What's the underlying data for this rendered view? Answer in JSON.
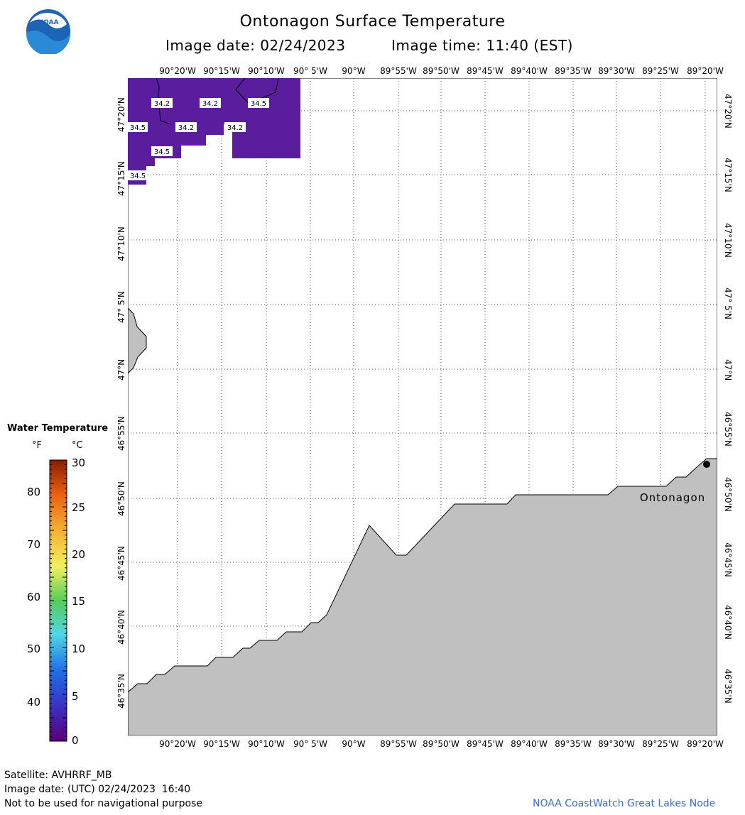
{
  "header": {
    "title": "Ontonagon Surface Temperature",
    "image_date_label": "Image date: 02/24/2023",
    "image_time_label": "Image time: 11:40 (EST)"
  },
  "map": {
    "longitude_labels": [
      "90°20'W",
      "90°15'W",
      "90°10'W",
      "90° 5'W",
      "90°W",
      "89°55'W",
      "89°50'W",
      "89°45'W",
      "89°40'W",
      "89°35'W",
      "89°30'W",
      "89°25'W",
      "89°20'W"
    ],
    "latitude_labels": [
      "47°20'N",
      "47°15'N",
      "47°10'N",
      "47° 5'N",
      "47°N",
      "46°55'N",
      "46°50'N",
      "46°45'N",
      "46°40'N",
      "46°35'N"
    ],
    "temperature_labels": [
      "34.2",
      "34.2",
      "34.5",
      "34.5",
      "34.2",
      "34.2",
      "34.5",
      "34.5"
    ],
    "station_label": "Ontonagon",
    "water_color": "#5a1d9e",
    "land_color": "#c0c0c0"
  },
  "colorbar": {
    "title": "Water Temperature",
    "unit_f": "°F",
    "unit_c": "°C",
    "f_ticks": [
      "80",
      "70",
      "60",
      "50",
      "40"
    ],
    "c_ticks": [
      "30",
      "25",
      "20",
      "15",
      "10",
      "5",
      "0"
    ]
  },
  "footer": {
    "satellite": "Satellite: AVHRRF_MB",
    "utc_date": "Image date: (UTC) 02/24/2023  16:40",
    "disclaimer": "Not to be used for navigational purpose",
    "credit": "NOAA CoastWatch Great Lakes Node"
  }
}
